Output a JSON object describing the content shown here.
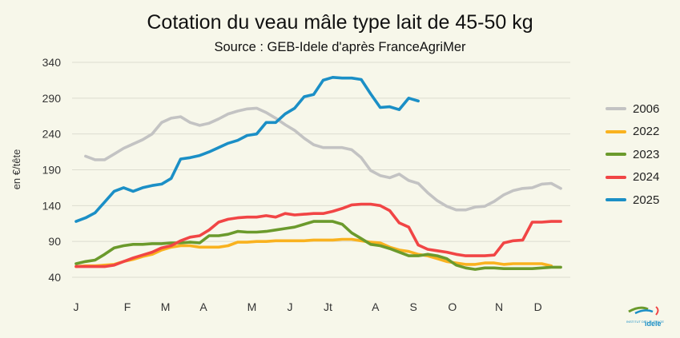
{
  "chart_data": {
    "type": "line",
    "title": "Cotation du veau mâle type lait de 45-50 kg",
    "subtitle": "Source : GEB-Idele d'après FranceAgriMer",
    "xlabel": "",
    "ylabel": "en €/tête",
    "ylim": [
      40,
      340
    ],
    "yticks": [
      40,
      90,
      140,
      190,
      240,
      290,
      340
    ],
    "xlim": [
      0,
      52
    ],
    "month_labels": [
      "J",
      "F",
      "M",
      "A",
      "M",
      "J",
      "Jt",
      "A",
      "S",
      "O",
      "N",
      "D"
    ],
    "month_positions": [
      0,
      5.4,
      9.4,
      13.4,
      18.5,
      22.5,
      26.5,
      31.5,
      35.5,
      39.6,
      44.5,
      48.6
    ],
    "grid": "horizontal",
    "legend_position": "right",
    "series": [
      {
        "name": "2006",
        "color": "#c3c3c3",
        "x": [
          1,
          2,
          3,
          4,
          5,
          6,
          7,
          8,
          9,
          10,
          11,
          12,
          13,
          14,
          15,
          16,
          17,
          18,
          19,
          20,
          21,
          22,
          23,
          24,
          25,
          26,
          27,
          28,
          29,
          30,
          31,
          32,
          33,
          34,
          35,
          36,
          37,
          38,
          39,
          40,
          41,
          42,
          43,
          44,
          45,
          46,
          47,
          48,
          49,
          50,
          51
        ],
        "values": [
          209,
          204,
          204,
          212,
          220,
          226,
          232,
          240,
          256,
          262,
          264,
          256,
          252,
          255,
          261,
          268,
          272,
          275,
          276,
          270,
          262,
          253,
          245,
          234,
          225,
          221,
          221,
          221,
          218,
          207,
          189,
          182,
          179,
          184,
          175,
          171,
          158,
          147,
          139,
          134,
          134,
          138,
          139,
          146,
          155,
          161,
          164,
          165,
          170,
          171,
          164
        ]
      },
      {
        "name": "2022",
        "color": "#f9b21f",
        "x": [
          0,
          1,
          2,
          3,
          4,
          5,
          6,
          7,
          8,
          9,
          10,
          11,
          12,
          13,
          14,
          15,
          16,
          17,
          18,
          19,
          20,
          21,
          22,
          23,
          24,
          25,
          26,
          27,
          28,
          29,
          30,
          31,
          32,
          33,
          34,
          35,
          36,
          37,
          38,
          39,
          40,
          41,
          42,
          43,
          44,
          45,
          46,
          47,
          48,
          49,
          50
        ],
        "values": [
          55,
          56,
          56,
          57,
          58,
          62,
          65,
          69,
          72,
          78,
          82,
          84,
          84,
          82,
          82,
          82,
          84,
          89,
          89,
          90,
          90,
          91,
          91,
          91,
          91,
          92,
          92,
          92,
          93,
          93,
          91,
          89,
          88,
          82,
          78,
          76,
          72,
          70,
          66,
          62,
          60,
          58,
          58,
          60,
          60,
          58,
          59,
          59,
          59,
          59,
          56
        ]
      },
      {
        "name": "2023",
        "color": "#6b9a2c",
        "x": [
          0,
          1,
          2,
          3,
          4,
          5,
          6,
          7,
          8,
          9,
          10,
          11,
          12,
          13,
          14,
          15,
          16,
          17,
          18,
          19,
          20,
          21,
          22,
          23,
          24,
          25,
          26,
          27,
          28,
          29,
          30,
          31,
          32,
          33,
          34,
          35,
          36,
          37,
          38,
          39,
          40,
          41,
          42,
          43,
          44,
          45,
          46,
          47,
          48,
          49,
          50,
          51
        ],
        "values": [
          59,
          62,
          64,
          72,
          81,
          84,
          86,
          86,
          87,
          87,
          88,
          88,
          89,
          88,
          98,
          98,
          100,
          104,
          103,
          103,
          104,
          106,
          108,
          110,
          114,
          118,
          118,
          118,
          114,
          102,
          94,
          86,
          84,
          80,
          75,
          70,
          70,
          72,
          70,
          66,
          57,
          53,
          51,
          53,
          53,
          52,
          52,
          52,
          52,
          53,
          54,
          54
        ]
      },
      {
        "name": "2024",
        "color": "#f14545",
        "x": [
          0,
          1,
          2,
          3,
          4,
          5,
          6,
          7,
          8,
          9,
          10,
          11,
          12,
          13,
          14,
          15,
          16,
          17,
          18,
          19,
          20,
          21,
          22,
          23,
          24,
          25,
          26,
          27,
          28,
          29,
          30,
          31,
          32,
          33,
          34,
          35,
          36,
          37,
          38,
          39,
          40,
          41,
          42,
          43,
          44,
          45,
          46,
          47,
          48,
          49,
          50,
          51
        ],
        "values": [
          55,
          55,
          55,
          55,
          57,
          62,
          67,
          71,
          75,
          81,
          84,
          91,
          96,
          98,
          106,
          117,
          121,
          123,
          124,
          124,
          126,
          124,
          129,
          127,
          128,
          129,
          129,
          132,
          136,
          141,
          142,
          142,
          140,
          133,
          116,
          110,
          85,
          79,
          77,
          75,
          72,
          70,
          70,
          70,
          71,
          88,
          91,
          92,
          117,
          117,
          118,
          118
        ]
      },
      {
        "name": "2025",
        "color": "#1b8fc6",
        "x": [
          0,
          1,
          2,
          3,
          4,
          5,
          6,
          7,
          8,
          9,
          10,
          11,
          12,
          13,
          14,
          15,
          16,
          17,
          18,
          19,
          20,
          21,
          22,
          23,
          24,
          25,
          26,
          27,
          28,
          29,
          30,
          31,
          32,
          33,
          34,
          35,
          36
        ],
        "values": [
          118,
          123,
          130,
          145,
          160,
          165,
          160,
          165,
          168,
          170,
          178,
          205,
          207,
          210,
          215,
          221,
          227,
          231,
          238,
          240,
          256,
          256,
          268,
          276,
          292,
          295,
          315,
          319,
          318,
          318,
          316,
          296,
          277,
          278,
          274,
          290,
          286
        ]
      }
    ]
  },
  "logo": {
    "text": "idele",
    "caption": "INSTITUT DE L'ÉLEVAGE"
  }
}
